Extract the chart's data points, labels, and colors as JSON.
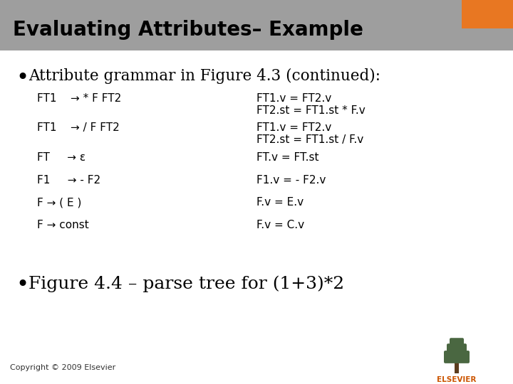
{
  "title": "Evaluating Attributes– Example",
  "title_bg_color": "#9e9e9e",
  "title_text_color": "#000000",
  "slide_bg_color": "#ffffff",
  "orange_rect_color": "#e87722",
  "bullet1_text": "Attribute grammar in Figure 4.3 (continued):",
  "bullet2_text": "Figure 4.4 – parse tree for (1+3)*2",
  "grammar_rows": [
    {
      "left": "FT1    → * F FT2",
      "right1": "FT1.v = FT2.v",
      "right2": "FT2.st = FT1.st * F.v"
    },
    {
      "left": "FT1    → / F FT2",
      "right1": "FT1.v = FT2.v",
      "right2": "FT2.st = FT1.st / F.v"
    },
    {
      "left": "FT     → ε",
      "right1": "FT.v = FT.st",
      "right2": ""
    },
    {
      "left": "F1     → - F2",
      "right1": "F1.v = - F2.v",
      "right2": ""
    },
    {
      "left": "F → ( E )",
      "right1": "F.v = E.v",
      "right2": ""
    },
    {
      "left": "F → const",
      "right1": "F.v = C.v",
      "right2": ""
    }
  ],
  "copyright_text": "Copyright © 2009 Elsevier",
  "elsevier_text": "ELSEVIER"
}
